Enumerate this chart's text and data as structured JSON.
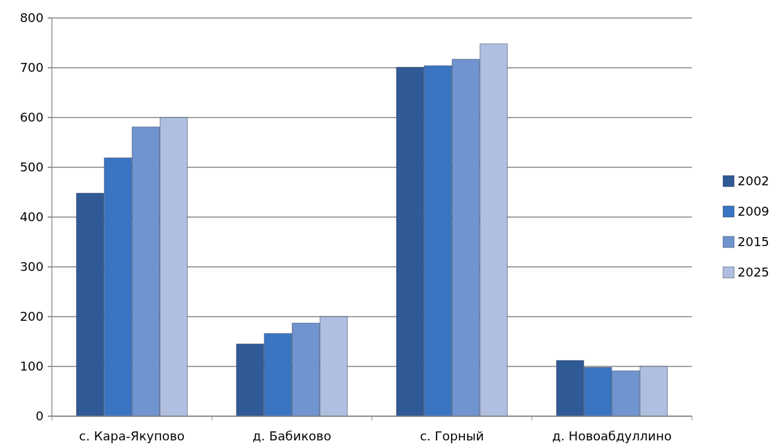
{
  "chart_data": {
    "type": "bar",
    "categories": [
      "с. Кара-Якупово",
      "д. Бабиково",
      "с. Горный",
      "д. Новоабдуллино"
    ],
    "series": [
      {
        "name": "2002",
        "color": "#2f5a96",
        "values": [
          448,
          145,
          701,
          112
        ]
      },
      {
        "name": "2009",
        "color": "#3a75c4",
        "values": [
          519,
          166,
          704,
          98
        ]
      },
      {
        "name": "2015",
        "color": "#7094d0",
        "values": [
          581,
          187,
          717,
          91
        ]
      },
      {
        "name": "2025",
        "color": "#b0bfdf",
        "values": [
          600,
          200,
          748,
          100
        ]
      }
    ],
    "ylim": [
      0,
      800
    ],
    "yticks": [
      0,
      100,
      200,
      300,
      400,
      500,
      600,
      700,
      800
    ],
    "grid": "y",
    "legend": "right"
  }
}
